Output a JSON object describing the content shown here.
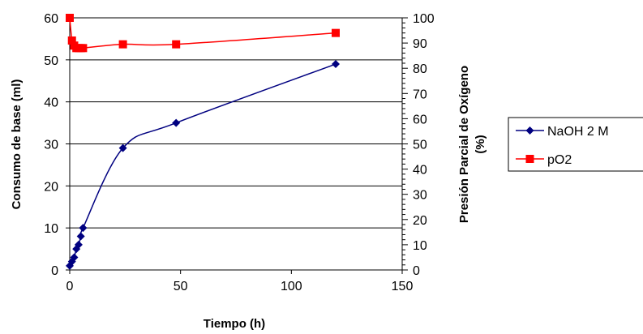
{
  "chart_data": {
    "type": "line",
    "xlabel": "Tiempo (h)",
    "ylabel_left": "Consumo de base (ml)",
    "ylabel_right_line1": "Presión Parcial de Oxígeno",
    "ylabel_right_line2": "(%)",
    "xlim": [
      0,
      150
    ],
    "ylim_left": [
      0,
      60
    ],
    "ylim_right": [
      0,
      100
    ],
    "x_ticks": [
      "0",
      "50",
      "100",
      "150"
    ],
    "y_left_ticks": [
      "0",
      "10",
      "20",
      "30",
      "40",
      "50",
      "60"
    ],
    "y_right_ticks": [
      "0",
      "10",
      "20",
      "30",
      "40",
      "50",
      "60",
      "70",
      "80",
      "90",
      "100"
    ],
    "grid": "horizontal",
    "legend_position": "right",
    "series": [
      {
        "name": "NaOH 2 M",
        "axis": "left",
        "color": "#000080",
        "marker": "diamond",
        "x": [
          0,
          1,
          2,
          3,
          4,
          5,
          6,
          24,
          48,
          120
        ],
        "y": [
          1,
          2,
          3,
          5,
          6,
          8,
          10,
          29,
          35,
          49
        ]
      },
      {
        "name": "pO2",
        "axis": "right",
        "color": "#ff0000",
        "marker": "square",
        "x": [
          0,
          1,
          2,
          3,
          4,
          5,
          6,
          24,
          48,
          120
        ],
        "y": [
          100,
          91,
          89,
          88,
          88,
          88,
          88,
          89.5,
          89.5,
          94
        ]
      }
    ]
  }
}
